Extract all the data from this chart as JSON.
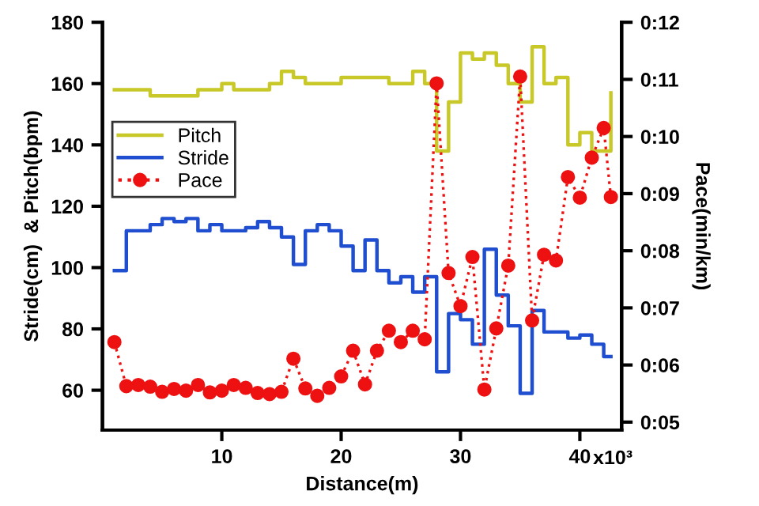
{
  "chart_data": {
    "type": "step",
    "xlabel": "Distance(m)",
    "ylabel": "Stride(cm)  & Pitch(bpm)",
    "y2label": "Pace(min/km)",
    "annotations": [
      "x10³"
    ],
    "xlim": [
      0,
      43.5
    ],
    "xticks": [
      10,
      20,
      30,
      40
    ],
    "ylim": [
      47,
      180
    ],
    "yticks": [
      60,
      80,
      100,
      120,
      140,
      160,
      180
    ],
    "y2lim": [
      4.86,
      12
    ],
    "y2ticks": [
      {
        "value": 5,
        "label": "0:05"
      },
      {
        "value": 6,
        "label": "0:06"
      },
      {
        "value": 7,
        "label": "0:07"
      },
      {
        "value": 8,
        "label": "0:08"
      },
      {
        "value": 9,
        "label": "0:09"
      },
      {
        "value": 10,
        "label": "0:10"
      },
      {
        "value": 11,
        "label": "0:11"
      },
      {
        "value": 12,
        "label": "0:12"
      }
    ],
    "grid": false,
    "legend": "top left",
    "series": [
      {
        "name": "Pitch",
        "color": "#c8c828",
        "x": [
          1,
          4,
          8,
          10,
          11,
          14,
          15,
          16,
          17,
          20,
          24,
          26,
          27,
          28,
          29,
          30,
          31,
          32,
          33,
          34,
          35,
          36,
          37,
          38,
          39,
          40,
          41,
          42.6
        ],
        "values": [
          158,
          156,
          158,
          160,
          158,
          160,
          164,
          162,
          160,
          162,
          160,
          164,
          160,
          138,
          154,
          170,
          168,
          170,
          166,
          160,
          154,
          172,
          160,
          162,
          140,
          144,
          138,
          157
        ]
      },
      {
        "name": "Stride",
        "color": "#1f4fd0",
        "x": [
          1,
          2,
          4,
          5,
          6,
          7,
          8,
          9,
          10,
          12,
          13,
          14,
          15,
          16,
          17,
          18,
          19,
          20,
          21,
          22,
          23,
          24,
          25,
          26,
          27,
          28,
          29,
          30,
          31,
          32,
          33,
          34,
          35,
          36,
          37,
          38,
          39,
          40,
          41,
          42,
          42.6
        ],
        "values": [
          99,
          112,
          114,
          116,
          115,
          116,
          112,
          114,
          112,
          113,
          115,
          113,
          110,
          101,
          112,
          114,
          112,
          107,
          99,
          109,
          99,
          95,
          97,
          92,
          97,
          66,
          85,
          83,
          75,
          106,
          91,
          81,
          59,
          86,
          79,
          79,
          77,
          78,
          75,
          71,
          71
        ]
      },
      {
        "name": "Pace",
        "type": "line",
        "axis": "y2",
        "color": "#ee1111",
        "marker": "circle",
        "line_style": "dotted",
        "x": [
          1,
          2,
          3,
          4,
          5,
          6,
          7,
          8,
          9,
          10,
          11,
          12,
          13,
          14,
          15,
          16,
          17,
          18,
          19,
          20,
          21,
          22,
          23,
          24,
          25,
          26,
          27,
          28,
          29,
          30,
          31,
          32,
          33,
          34,
          35,
          36,
          37,
          38,
          39,
          40,
          41,
          42,
          42.6
        ],
        "values": [
          6.4,
          5.63,
          5.65,
          5.62,
          5.53,
          5.58,
          5.55,
          5.65,
          5.52,
          5.55,
          5.65,
          5.6,
          5.51,
          5.49,
          5.53,
          6.11,
          5.59,
          5.46,
          5.6,
          5.8,
          6.25,
          5.66,
          6.25,
          6.6,
          6.4,
          6.6,
          6.45,
          10.93,
          7.61,
          7.03,
          7.89,
          5.57,
          6.64,
          7.74,
          11.05,
          6.78,
          7.93,
          7.83,
          9.29,
          8.93,
          9.63,
          10.15,
          8.94
        ]
      }
    ]
  }
}
